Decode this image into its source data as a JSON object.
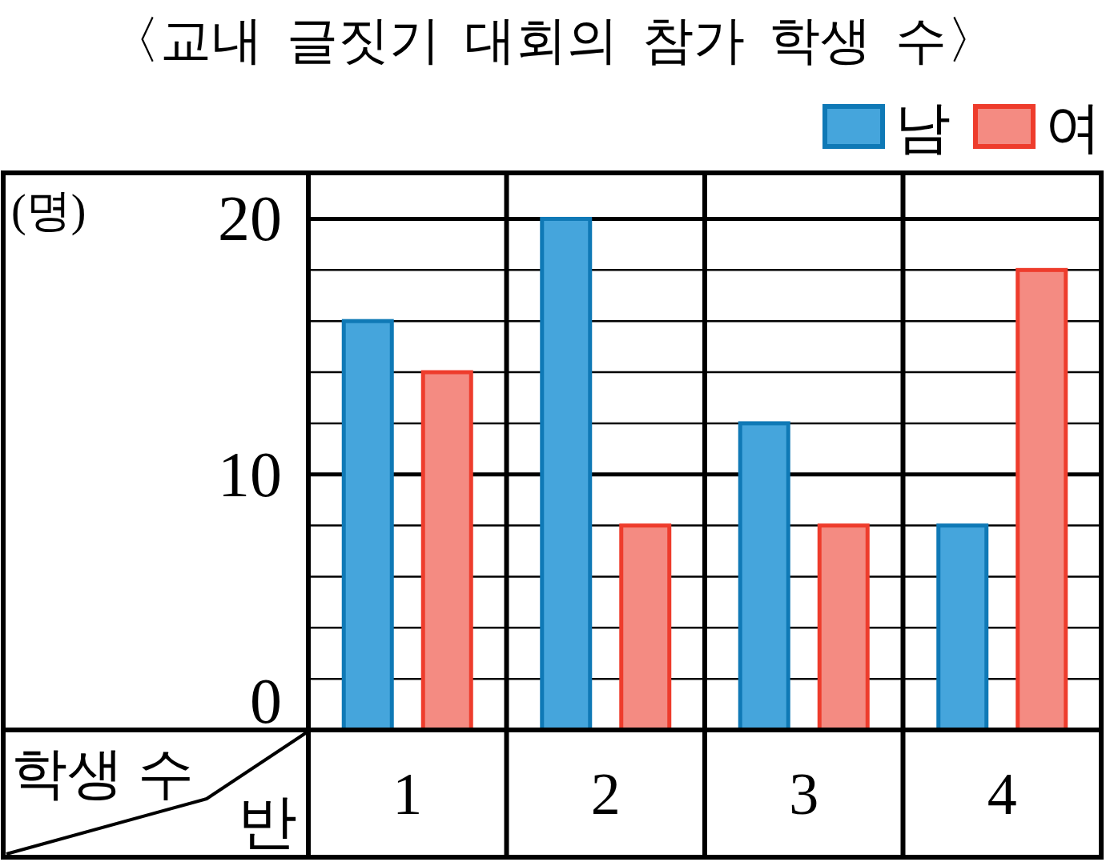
{
  "chart_data": {
    "type": "bar",
    "title": "〈교내 글짓기 대회의 참가 학생 수〉",
    "xlabel": "반",
    "ylabel": "학생 수",
    "annotations": [
      "(명)"
    ],
    "categories": [
      "1",
      "2",
      "3",
      "4"
    ],
    "series": [
      {
        "name": "남",
        "color": "#45a5dc",
        "values": [
          16,
          20,
          12,
          8
        ]
      },
      {
        "name": "여",
        "color": "#f48b82",
        "values": [
          14,
          8,
          8,
          18
        ]
      }
    ],
    "ylim": [
      0,
      21.8
    ],
    "yticks": [
      0,
      {
        "value": 2,
        "label": null
      },
      {
        "value": 4,
        "label": null
      },
      {
        "value": 6,
        "label": null
      },
      {
        "value": 8,
        "label": null
      },
      10,
      {
        "value": 12,
        "label": null
      },
      {
        "value": 14,
        "label": null
      },
      {
        "value": 16,
        "label": null
      },
      {
        "value": 18,
        "label": null
      },
      20
    ],
    "grid": "y",
    "legend": "top right"
  }
}
